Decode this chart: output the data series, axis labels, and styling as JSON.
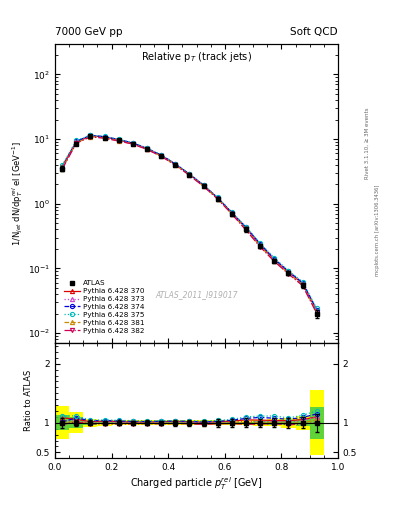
{
  "title_left": "7000 GeV pp",
  "title_right": "Soft QCD",
  "plot_title": "Relative p$_T$ (track jets)",
  "xlabel": "Charged particle $p_T^{rel}$ [GeV]",
  "ylabel_top": "1/N$_{jet}$ dN/dp$_T^{rel}$ el [GeV$^{-1}$]",
  "ylabel_bottom": "Ratio to ATLAS",
  "right_label_top": "Rivet 3.1.10, ≥ 3M events",
  "right_label_bottom": "mcplots.cern.ch [arXiv:1306.3436]",
  "watermark": "ATLAS_2011_I919017",
  "legend_entries": [
    "ATLAS",
    "Pythia 6.428 370",
    "Pythia 6.428 373",
    "Pythia 6.428 374",
    "Pythia 6.428 375",
    "Pythia 6.428 381",
    "Pythia 6.428 382"
  ],
  "x_data": [
    0.025,
    0.075,
    0.125,
    0.175,
    0.225,
    0.275,
    0.325,
    0.375,
    0.425,
    0.475,
    0.525,
    0.575,
    0.625,
    0.675,
    0.725,
    0.775,
    0.825,
    0.875,
    0.925
  ],
  "atlas_y": [
    3.5,
    8.5,
    11.0,
    10.5,
    9.5,
    8.5,
    7.0,
    5.5,
    4.0,
    2.8,
    1.9,
    1.2,
    0.7,
    0.4,
    0.22,
    0.13,
    0.085,
    0.055,
    0.02
  ],
  "atlas_yerr": [
    0.3,
    0.4,
    0.5,
    0.4,
    0.4,
    0.3,
    0.3,
    0.2,
    0.2,
    0.15,
    0.1,
    0.08,
    0.05,
    0.03,
    0.015,
    0.01,
    0.007,
    0.005,
    0.003
  ],
  "py370_y": [
    3.8,
    9.0,
    11.2,
    10.8,
    9.7,
    8.6,
    7.1,
    5.6,
    4.1,
    2.85,
    1.92,
    1.22,
    0.72,
    0.42,
    0.23,
    0.135,
    0.088,
    0.058,
    0.022
  ],
  "py373_y": [
    3.6,
    8.8,
    11.1,
    10.6,
    9.6,
    8.55,
    7.05,
    5.55,
    4.05,
    2.82,
    1.9,
    1.21,
    0.71,
    0.41,
    0.225,
    0.133,
    0.086,
    0.057,
    0.022
  ],
  "py374_y": [
    3.55,
    9.2,
    11.4,
    10.9,
    9.8,
    8.7,
    7.15,
    5.65,
    4.12,
    2.87,
    1.93,
    1.23,
    0.73,
    0.43,
    0.24,
    0.14,
    0.09,
    0.06,
    0.023
  ],
  "py375_y": [
    3.9,
    9.5,
    11.5,
    11.0,
    9.9,
    8.8,
    7.2,
    5.7,
    4.15,
    2.9,
    1.95,
    1.25,
    0.74,
    0.44,
    0.245,
    0.145,
    0.092,
    0.062,
    0.024
  ],
  "py381_y": [
    3.5,
    8.7,
    10.9,
    10.4,
    9.4,
    8.4,
    6.95,
    5.45,
    3.98,
    2.77,
    1.87,
    1.19,
    0.7,
    0.4,
    0.22,
    0.13,
    0.084,
    0.055,
    0.021
  ],
  "py382_y": [
    3.4,
    8.6,
    10.8,
    10.3,
    9.3,
    8.35,
    6.9,
    5.4,
    3.95,
    2.75,
    1.85,
    1.18,
    0.69,
    0.39,
    0.215,
    0.128,
    0.082,
    0.054,
    0.02
  ],
  "atlas_band_yellow": [
    0.28,
    0.18,
    0.07,
    0.05,
    0.04,
    0.04,
    0.04,
    0.04,
    0.04,
    0.04,
    0.04,
    0.04,
    0.04,
    0.04,
    0.05,
    0.06,
    0.08,
    0.12,
    0.55
  ],
  "atlas_band_green": [
    0.13,
    0.09,
    0.035,
    0.025,
    0.02,
    0.02,
    0.02,
    0.02,
    0.02,
    0.02,
    0.02,
    0.02,
    0.02,
    0.02,
    0.025,
    0.03,
    0.04,
    0.06,
    0.27
  ],
  "colors": {
    "py370": "#dd0000",
    "py373": "#cc44cc",
    "py374": "#0000dd",
    "py375": "#00bbbb",
    "py381": "#cc8800",
    "py382": "#cc0055"
  },
  "linestyles": {
    "py370": "-",
    "py373": ":",
    "py374": "--",
    "py375": ":",
    "py381": "--",
    "py382": "-."
  },
  "markers": {
    "py370": "^",
    "py373": "^",
    "py374": "o",
    "py375": "o",
    "py381": "^",
    "py382": "v"
  }
}
